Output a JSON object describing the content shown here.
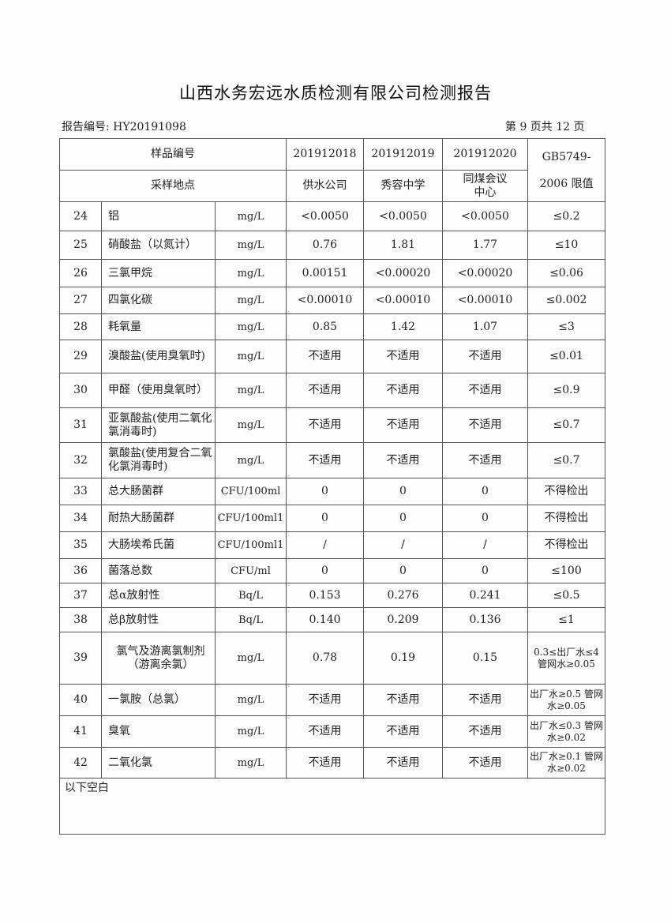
{
  "title": "山西水务宏远水质检测有限公司检测报告",
  "report_no": "报告编号: HY20191098",
  "page_no": "第 9 页共 12 页",
  "header": {
    "sample_no_label": "样品编号",
    "location_label": "采样地点",
    "samples": [
      {
        "no": "201912018",
        "location": "供水公司"
      },
      {
        "no": "201912019",
        "location": "秀容中学"
      },
      {
        "no": "201912020",
        "location": "同煤会议中心"
      }
    ],
    "limit_label": "GB5749-2006 限值"
  },
  "rows": [
    {
      "idx": "24",
      "item": "铝",
      "unit": "mg/L",
      "v1": "<0.0050",
      "v2": "<0.0050",
      "v3": "<0.0050",
      "limit": "≤0.2"
    },
    {
      "idx": "25",
      "item": "硝酸盐（以氮计）",
      "unit": "mg/L",
      "v1": "0.76",
      "v2": "1.81",
      "v3": "1.77",
      "limit": "≤10"
    },
    {
      "idx": "26",
      "item": "三氯甲烷",
      "unit": "mg/L",
      "v1": "0.00151",
      "v2": "<0.00020",
      "v3": "<0.00020",
      "limit": "≤0.06"
    },
    {
      "idx": "27",
      "item": "四氯化碳",
      "unit": "mg/L",
      "v1": "<0.00010",
      "v2": "<0.00010",
      "v3": "<0.00010",
      "limit": "≤0.002"
    },
    {
      "idx": "28",
      "item": "耗氧量",
      "unit": "mg/L",
      "v1": "0.85",
      "v2": "1.42",
      "v3": "1.07",
      "limit": "≤3"
    },
    {
      "idx": "29",
      "item": "溴酸盐(使用臭氧时)",
      "unit": "mg/L",
      "v1": "不适用",
      "v2": "不适用",
      "v3": "不适用",
      "limit": "≤0.01"
    },
    {
      "idx": "30",
      "item": "甲醛（使用臭氧时）",
      "unit": "mg/L",
      "v1": "不适用",
      "v2": "不适用",
      "v3": "不适用",
      "limit": "≤0.9"
    },
    {
      "idx": "31",
      "item": "亚氯酸盐(使用二氧化氯消毒时)",
      "unit": "mg/L",
      "v1": "不适用",
      "v2": "不适用",
      "v3": "不适用",
      "limit": "≤0.7"
    },
    {
      "idx": "32",
      "item": "氯酸盐(使用复合二氧化氯消毒时)",
      "unit": "mg/L",
      "v1": "不适用",
      "v2": "不适用",
      "v3": "不适用",
      "limit": "≤0.7"
    },
    {
      "idx": "33",
      "item": "总大肠菌群",
      "unit": "CFU/100ml",
      "v1": "0",
      "v2": "0",
      "v3": "0",
      "limit": "不得检出"
    },
    {
      "idx": "34",
      "item": "耐热大肠菌群",
      "unit": "CFU/100ml1",
      "v1": "0",
      "v2": "0",
      "v3": "0",
      "limit": "不得检出"
    },
    {
      "idx": "35",
      "item": "大肠埃希氏菌",
      "unit": "CFU/100ml1",
      "v1": "/",
      "v2": "/",
      "v3": "/",
      "limit": "不得检出"
    },
    {
      "idx": "36",
      "item": "菌落总数",
      "unit": "CFU/ml",
      "v1": "0",
      "v2": "0",
      "v3": "0",
      "limit": "≤100"
    },
    {
      "idx": "37",
      "item": "总α放射性",
      "unit": "Bq/L",
      "v1": "0.153",
      "v2": "0.276",
      "v3": "0.241",
      "limit": "≤0.5"
    },
    {
      "idx": "38",
      "item": "总β放射性",
      "unit": "Bq/L",
      "v1": "0.140",
      "v2": "0.209",
      "v3": "0.136",
      "limit": "≤1"
    },
    {
      "idx": "39",
      "item": "氯气及游离氯制剂（游离余氯）",
      "unit": "mg/L",
      "v1": "0.78",
      "v2": "0.19",
      "v3": "0.15",
      "limit": "0.3≤出厂水≤4 管网水≥0.05"
    },
    {
      "idx": "40",
      "item": "一氯胺（总氯）",
      "unit": "mg/L",
      "v1": "不适用",
      "v2": "不适用",
      "v3": "不适用",
      "limit": "出厂水≥0.5 管网水≥0.05"
    },
    {
      "idx": "41",
      "item": "臭氧",
      "unit": "mg/L",
      "v1": "不适用",
      "v2": "不适用",
      "v3": "不适用",
      "limit": "出厂水≤0.3 管网水≥0.02"
    },
    {
      "idx": "42",
      "item": "二氧化氯",
      "unit": "mg/L",
      "v1": "不适用",
      "v2": "不适用",
      "v3": "不适用",
      "limit": "出厂水≥0.1 管网水≥0.02"
    }
  ],
  "footer_note": "以下空白"
}
